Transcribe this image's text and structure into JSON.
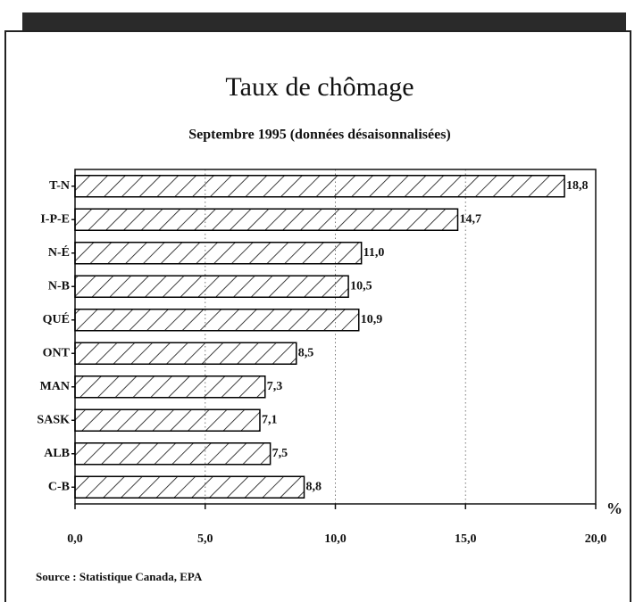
{
  "chart_data": {
    "type": "bar",
    "orientation": "horizontal",
    "title": "Taux de chômage",
    "subtitle": "Septembre 1995  (données désaisonnalisées)",
    "x_label": "%",
    "source": "Source : Statistique Canada, EPA",
    "categories": [
      "T-N",
      "I-P-E",
      "N-É",
      "N-B",
      "QUÉ",
      "ONT",
      "MAN",
      "SASK",
      "ALB",
      "C-B"
    ],
    "values": [
      18.8,
      14.7,
      11.0,
      10.5,
      10.9,
      8.5,
      7.3,
      7.1,
      7.5,
      8.8
    ],
    "value_labels": [
      "18,8",
      "14,7",
      "11,0",
      "10,5",
      "10,9",
      "8,5",
      "7,3",
      "7,1",
      "7,5",
      "8,8"
    ],
    "color": "#000000",
    "xlim": [
      0,
      20
    ],
    "xticks": [
      {
        "value": 0,
        "label": "0,0"
      },
      {
        "value": 5,
        "label": "5,0"
      },
      {
        "value": 10,
        "label": "10,0"
      },
      {
        "value": 15,
        "label": "15,0"
      },
      {
        "value": 20,
        "label": "20,0"
      }
    ],
    "grid": true
  }
}
